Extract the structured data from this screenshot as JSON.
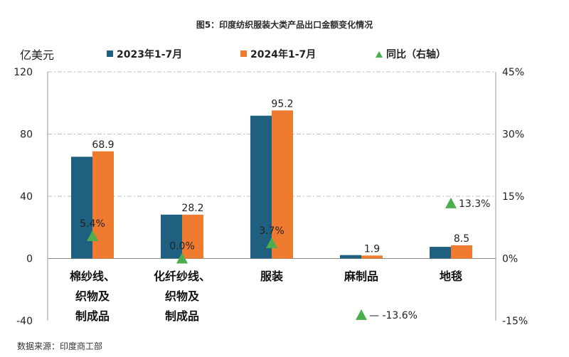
{
  "title": "图5：印度纺织服装大类产品出口金额变化情况",
  "y_unit": "亿美元",
  "source": "数据来源：印度商工部",
  "colors": {
    "series_2023": "#1f5f7f",
    "series_2024": "#ee7b30",
    "yoy": "#4cae4c"
  },
  "chart_data": {
    "type": "bar",
    "categories": [
      [
        "棉纱线、",
        "织物及",
        "制成品"
      ],
      [
        "化纤纱线、",
        "织物及",
        "制成品"
      ],
      [
        "服装"
      ],
      [
        "麻制品"
      ],
      [
        "地毯"
      ]
    ],
    "series": [
      {
        "name": "2023年1-7月",
        "values": [
          65.4,
          28.2,
          91.8,
          2.2,
          7.5
        ]
      },
      {
        "name": "2024年1-7月",
        "values": [
          68.9,
          28.2,
          95.2,
          1.9,
          8.5
        ]
      }
    ],
    "line_series": {
      "name": "同比（右轴）",
      "values": [
        5.4,
        0.0,
        3.7,
        -13.6,
        13.3
      ]
    },
    "bar_labels": [
      "68.9",
      "28.2",
      "95.2",
      "1.9",
      "8.5"
    ],
    "yoy_labels": [
      "5.4%",
      "0.0%",
      "3.7%",
      "-13.6%",
      "13.3%"
    ],
    "ylim": [
      -40,
      120
    ],
    "y_ticks": [
      "-40",
      "0",
      "40",
      "80",
      "120"
    ],
    "y2lim": [
      -15,
      45
    ],
    "y2_ticks": [
      "-15%",
      "0%",
      "15%",
      "30%",
      "45%"
    ],
    "grid": true,
    "legend_position": "top"
  }
}
